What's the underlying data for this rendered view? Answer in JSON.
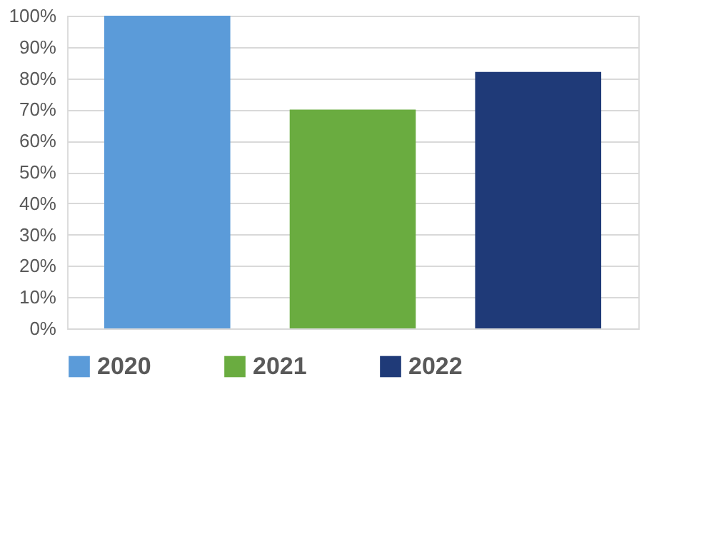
{
  "chart_data": {
    "type": "bar",
    "categories": [
      null,
      null,
      null
    ],
    "series": [
      {
        "name": "2020",
        "color": "#5b9bd9",
        "values": [
          100,
          null,
          null
        ]
      },
      {
        "name": "2021",
        "color": "#6aac40",
        "values": [
          null,
          70,
          null
        ]
      },
      {
        "name": "2022",
        "color": "#1f3a78",
        "values": [
          null,
          null,
          82
        ]
      }
    ],
    "ylim": [
      0,
      100
    ],
    "yticks": [
      {
        "value": 0,
        "label": "0%"
      },
      {
        "value": 10,
        "label": "10%"
      },
      {
        "value": 20,
        "label": "20%"
      },
      {
        "value": 30,
        "label": "30%"
      },
      {
        "value": 40,
        "label": "40%"
      },
      {
        "value": 50,
        "label": "50%"
      },
      {
        "value": 60,
        "label": "60%"
      },
      {
        "value": 70,
        "label": "70%"
      },
      {
        "value": 80,
        "label": "80%"
      },
      {
        "value": 90,
        "label": "90%"
      },
      {
        "value": 100,
        "label": "100%"
      }
    ],
    "grid": "y",
    "legend": "bottom"
  }
}
